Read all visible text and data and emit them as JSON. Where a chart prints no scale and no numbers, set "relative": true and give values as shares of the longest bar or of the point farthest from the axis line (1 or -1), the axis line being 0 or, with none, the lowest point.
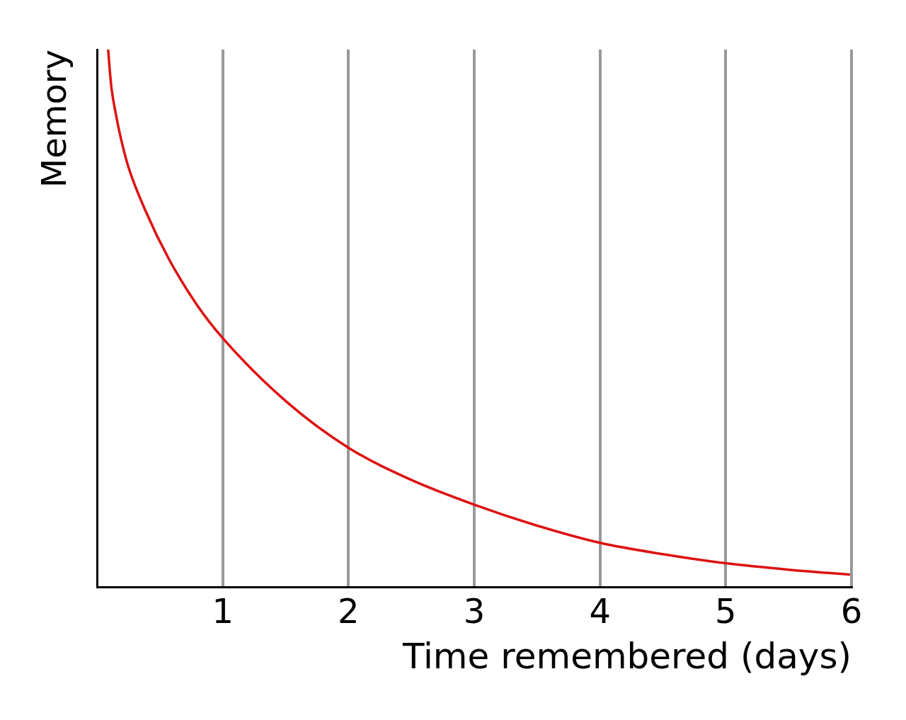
{
  "chart_data": {
    "type": "line",
    "xlabel": "Time remembered (days)",
    "ylabel": "Memory",
    "relative": true,
    "x": [
      0.089,
      0.101,
      0.115,
      0.146,
      0.184,
      0.248,
      0.386,
      0.57,
      0.8,
      1.0,
      1.5,
      2.0,
      2.5,
      3.0,
      3.5,
      4.0,
      4.5,
      5.0,
      5.5,
      5.98
    ],
    "values": [
      1.0,
      0.964,
      0.929,
      0.885,
      0.841,
      0.783,
      0.7,
      0.611,
      0.523,
      0.463,
      0.346,
      0.259,
      0.199,
      0.153,
      0.114,
      0.082,
      0.061,
      0.044,
      0.032,
      0.023
    ],
    "color": "#dd1111",
    "xlim": [
      0,
      6
    ],
    "xticks": [
      1,
      2,
      3,
      4,
      5,
      6
    ],
    "grid": "x",
    "marker": "none"
  }
}
